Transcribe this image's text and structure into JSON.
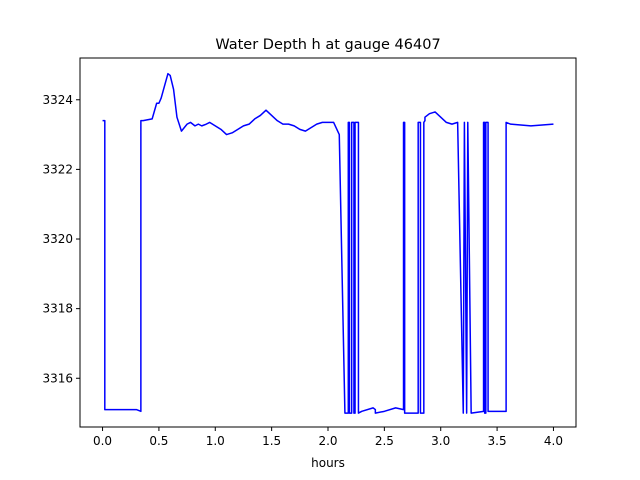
{
  "chart_data": {
    "type": "line",
    "title": "Water Depth h at gauge 46407",
    "xlabel": "hours",
    "ylabel": "",
    "xlim": [
      -0.2,
      4.2
    ],
    "ylim": [
      3314.6,
      3325.2
    ],
    "xticks": [
      0.0,
      0.5,
      1.0,
      1.5,
      2.0,
      2.5,
      3.0,
      3.5,
      4.0
    ],
    "xtick_labels": [
      "0.0",
      "0.5",
      "1.0",
      "1.5",
      "2.0",
      "2.5",
      "3.0",
      "3.5",
      "4.0"
    ],
    "yticks": [
      3316,
      3318,
      3320,
      3322,
      3324
    ],
    "ytick_labels": [
      "3316",
      "3318",
      "3320",
      "3322",
      "3324"
    ],
    "grid": false,
    "legend": "none",
    "series": [
      {
        "color": "#0000ff",
        "x": [
          0.0,
          0.02,
          0.02,
          0.15,
          0.3,
          0.34,
          0.34,
          0.36,
          0.44,
          0.48,
          0.5,
          0.52,
          0.55,
          0.58,
          0.6,
          0.63,
          0.66,
          0.7,
          0.75,
          0.78,
          0.82,
          0.85,
          0.88,
          0.92,
          0.95,
          1.0,
          1.05,
          1.1,
          1.15,
          1.2,
          1.25,
          1.3,
          1.35,
          1.4,
          1.45,
          1.5,
          1.55,
          1.6,
          1.65,
          1.7,
          1.75,
          1.8,
          1.85,
          1.9,
          1.95,
          2.0,
          2.05,
          2.1,
          2.15,
          2.18,
          2.18,
          2.19,
          2.19,
          2.21,
          2.21,
          2.23,
          2.23,
          2.24,
          2.24,
          2.27,
          2.27,
          2.3,
          2.4,
          2.42,
          2.42,
          2.5,
          2.6,
          2.67,
          2.67,
          2.68,
          2.68,
          2.7,
          2.7,
          2.8,
          2.8,
          2.82,
          2.82,
          2.85,
          2.85,
          2.86,
          2.86,
          2.9,
          2.95,
          3.0,
          3.05,
          3.1,
          3.15,
          3.2,
          3.2,
          3.21,
          3.21,
          3.23,
          3.23,
          3.24,
          3.24,
          3.27,
          3.38,
          3.38,
          3.39,
          3.39,
          3.4,
          3.4,
          3.42,
          3.42,
          3.58,
          3.58,
          3.62,
          3.8,
          4.0
        ],
        "y": [
          3323.4,
          3323.4,
          3315.1,
          3315.1,
          3315.1,
          3315.05,
          3323.4,
          3323.4,
          3323.45,
          3323.9,
          3323.9,
          3324.05,
          3324.4,
          3324.75,
          3324.7,
          3324.3,
          3323.5,
          3323.1,
          3323.3,
          3323.35,
          3323.25,
          3323.3,
          3323.25,
          3323.3,
          3323.35,
          3323.25,
          3323.15,
          3323.0,
          3323.05,
          3323.15,
          3323.25,
          3323.3,
          3323.45,
          3323.55,
          3323.7,
          3323.55,
          3323.4,
          3323.3,
          3323.3,
          3323.25,
          3323.15,
          3323.1,
          3323.2,
          3323.3,
          3323.35,
          3323.35,
          3323.35,
          3323.0,
          3315.0,
          3315.0,
          3323.35,
          3323.35,
          3315.0,
          3315.0,
          3323.35,
          3323.35,
          3315.0,
          3315.0,
          3323.35,
          3323.35,
          3315.0,
          3315.05,
          3315.15,
          3315.1,
          3315.0,
          3315.05,
          3315.15,
          3315.1,
          3323.35,
          3323.35,
          3315.0,
          3315.0,
          3315.0,
          3315.0,
          3323.35,
          3323.35,
          3315.0,
          3315.0,
          3323.35,
          3323.4,
          3323.5,
          3323.6,
          3323.65,
          3323.5,
          3323.35,
          3323.3,
          3323.35,
          3315.0,
          3315.0,
          3323.35,
          3323.35,
          3315.0,
          3315.0,
          3323.35,
          3323.35,
          3315.0,
          3315.05,
          3323.35,
          3323.35,
          3315.0,
          3315.0,
          3323.35,
          3323.35,
          3315.05,
          3315.05,
          3323.35,
          3323.3,
          3323.25,
          3323.3
        ]
      }
    ]
  }
}
